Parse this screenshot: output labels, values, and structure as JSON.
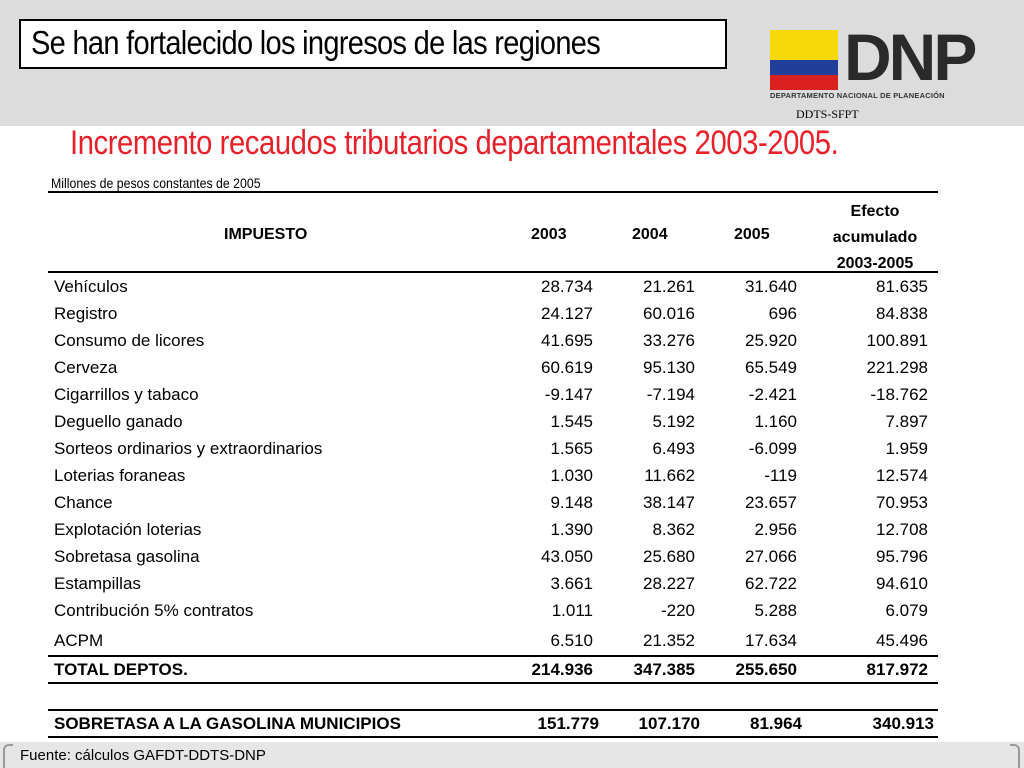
{
  "header": {
    "title": "Se han fortalecido los ingresos de las regiones",
    "logo_text": "DNP",
    "logo_subtitle": "DEPARTAMENTO NACIONAL DE PLANEACIÓN",
    "unit_code": "DDTS-SFPT"
  },
  "subtitle": "Incremento recaudos tributarios departamentales 2003-2005.",
  "units": "Millones de pesos constantes de 2005",
  "table": {
    "col_impuesto": "IMPUESTO",
    "col_2003": "2003",
    "col_2004": "2004",
    "col_2005": "2005",
    "col_efecto_1": "Efecto",
    "col_efecto_2": "acumulado",
    "col_efecto_3": "2003-2005",
    "rows": [
      {
        "name": "Vehículos",
        "v2003": "28.734",
        "v2004": "21.261",
        "v2005": "31.640",
        "efecto": "81.635"
      },
      {
        "name": "Registro",
        "v2003": "24.127",
        "v2004": "60.016",
        "v2005": "696",
        "efecto": "84.838"
      },
      {
        "name": "Consumo de licores",
        "v2003": "41.695",
        "v2004": "33.276",
        "v2005": "25.920",
        "efecto": "100.891"
      },
      {
        "name": "Cerveza",
        "v2003": "60.619",
        "v2004": "95.130",
        "v2005": "65.549",
        "efecto": "221.298"
      },
      {
        "name": "Cigarrillos y tabaco",
        "v2003": "-9.147",
        "v2004": "-7.194",
        "v2005": "-2.421",
        "efecto": "-18.762"
      },
      {
        "name": "Deguello ganado",
        "v2003": "1.545",
        "v2004": "5.192",
        "v2005": "1.160",
        "efecto": "7.897"
      },
      {
        "name": "Sorteos ordinarios y extraordinarios",
        "v2003": "1.565",
        "v2004": "6.493",
        "v2005": "-6.099",
        "efecto": "1.959"
      },
      {
        "name": "Loterias foraneas",
        "v2003": "1.030",
        "v2004": "11.662",
        "v2005": "-119",
        "efecto": "12.574"
      },
      {
        "name": "Chance",
        "v2003": "9.148",
        "v2004": "38.147",
        "v2005": "23.657",
        "efecto": "70.953"
      },
      {
        "name": "Explotación loterias",
        "v2003": "1.390",
        "v2004": "8.362",
        "v2005": "2.956",
        "efecto": "12.708"
      },
      {
        "name": "Sobretasa gasolina",
        "v2003": "43.050",
        "v2004": "25.680",
        "v2005": "27.066",
        "efecto": "95.796"
      },
      {
        "name": "Estampillas",
        "v2003": "3.661",
        "v2004": "28.227",
        "v2005": "62.722",
        "efecto": "94.610"
      },
      {
        "name": "Contribución 5% contratos",
        "v2003": "1.011",
        "v2004": "-220",
        "v2005": "5.288",
        "efecto": "6.079"
      },
      {
        "name": "ACPM",
        "v2003": "6.510",
        "v2004": "21.352",
        "v2005": "17.634",
        "efecto": "45.496"
      }
    ],
    "total": {
      "name": "TOTAL DEPTOS.",
      "v2003": "214.936",
      "v2004": "347.385",
      "v2005": "255.650",
      "efecto": "817.972"
    },
    "municipios": {
      "name": "SOBRETASA A LA GASOLINA MUNICIPIOS",
      "v2003": "151.779",
      "v2004": "107.170",
      "v2005": "81.964",
      "efecto": "340.913"
    }
  },
  "source": "Fuente: cálculos GAFDT-DDTS-DNP",
  "colors": {
    "subtitle": "#e8202a",
    "header_bg": "#dcdcdc"
  }
}
